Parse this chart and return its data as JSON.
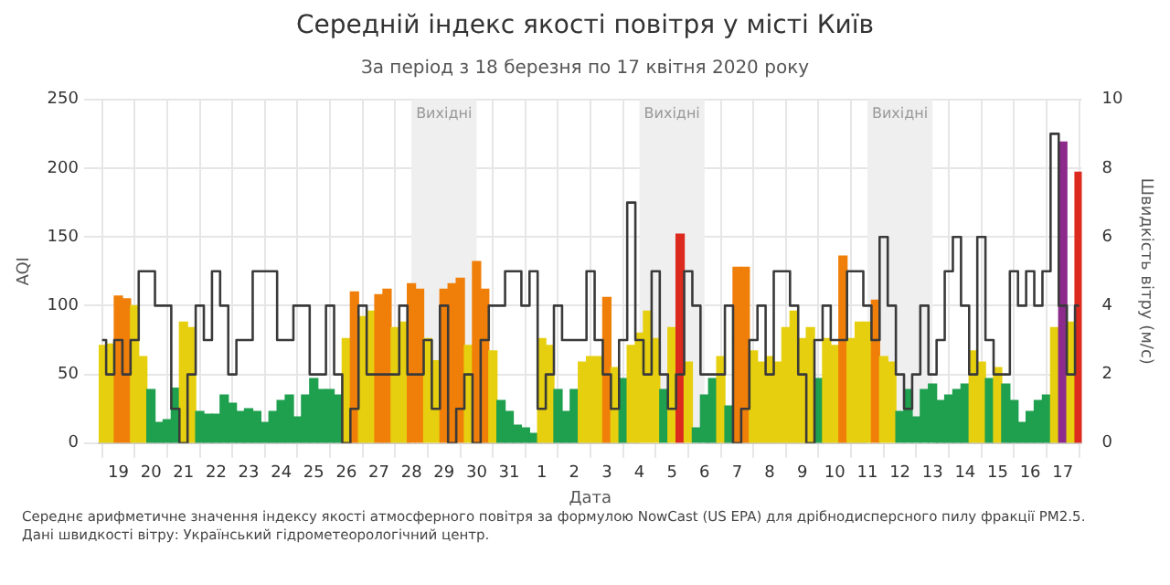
{
  "chart_data": {
    "type": "bar",
    "title": "Середній індекс якості повітря у місті Київ",
    "subtitle": "За період з 18 березня по 17 квітня 2020 року",
    "xlabel": "Дата",
    "ylabel": "AQI",
    "y2label": "Швидкість вітру (м/с)",
    "x": [
      "2020-03-18T12:00",
      "2020-03-18T18:00",
      "2020-03-19T00:00",
      "2020-03-19T06:00",
      "2020-03-19T12:00",
      "2020-03-19T18:00",
      "2020-03-20T00:00",
      "2020-03-20T06:00",
      "2020-03-20T12:00",
      "2020-03-20T18:00",
      "2020-03-21T00:00",
      "2020-03-21T06:00",
      "2020-03-21T12:00",
      "2020-03-21T18:00",
      "2020-03-22T00:00",
      "2020-03-22T06:00",
      "2020-03-22T12:00",
      "2020-03-22T18:00",
      "2020-03-23T00:00",
      "2020-03-23T06:00",
      "2020-03-23T12:00",
      "2020-03-23T18:00",
      "2020-03-24T00:00",
      "2020-03-24T06:00",
      "2020-03-24T12:00",
      "2020-03-24T18:00",
      "2020-03-25T00:00",
      "2020-03-25T06:00",
      "2020-03-25T12:00",
      "2020-03-25T18:00",
      "2020-03-26T00:00",
      "2020-03-26T06:00",
      "2020-03-26T12:00",
      "2020-03-26T18:00",
      "2020-03-27T00:00",
      "2020-03-27T06:00",
      "2020-03-27T12:00",
      "2020-03-27T18:00",
      "2020-03-28T00:00",
      "2020-03-28T06:00",
      "2020-03-28T12:00",
      "2020-03-28T18:00",
      "2020-03-29T00:00",
      "2020-03-29T06:00",
      "2020-03-29T12:00",
      "2020-03-29T18:00",
      "2020-03-30T00:00",
      "2020-03-30T06:00",
      "2020-03-30T12:00",
      "2020-03-30T18:00",
      "2020-03-31T00:00",
      "2020-03-31T06:00",
      "2020-03-31T12:00",
      "2020-03-31T18:00",
      "2020-04-01T00:00",
      "2020-04-01T06:00",
      "2020-04-01T12:00",
      "2020-04-01T18:00",
      "2020-04-02T00:00",
      "2020-04-02T06:00",
      "2020-04-02T12:00",
      "2020-04-02T18:00",
      "2020-04-03T00:00",
      "2020-04-03T06:00",
      "2020-04-03T12:00",
      "2020-04-03T18:00",
      "2020-04-04T00:00",
      "2020-04-04T06:00",
      "2020-04-04T12:00",
      "2020-04-04T18:00",
      "2020-04-05T00:00",
      "2020-04-05T06:00",
      "2020-04-05T12:00",
      "2020-04-05T18:00",
      "2020-04-06T00:00",
      "2020-04-06T06:00",
      "2020-04-06T12:00",
      "2020-04-06T18:00",
      "2020-04-07T00:00",
      "2020-04-07T06:00",
      "2020-04-07T12:00",
      "2020-04-07T18:00",
      "2020-04-08T00:00",
      "2020-04-08T06:00",
      "2020-04-08T12:00",
      "2020-04-08T18:00",
      "2020-04-09T00:00",
      "2020-04-09T06:00",
      "2020-04-09T12:00",
      "2020-04-09T18:00",
      "2020-04-10T00:00",
      "2020-04-10T06:00",
      "2020-04-10T12:00",
      "2020-04-10T18:00",
      "2020-04-11T00:00",
      "2020-04-11T06:00",
      "2020-04-11T12:00",
      "2020-04-11T18:00",
      "2020-04-12T00:00",
      "2020-04-12T06:00",
      "2020-04-12T12:00",
      "2020-04-12T18:00",
      "2020-04-13T00:00",
      "2020-04-13T06:00",
      "2020-04-13T12:00",
      "2020-04-13T18:00",
      "2020-04-14T00:00",
      "2020-04-14T06:00",
      "2020-04-14T12:00",
      "2020-04-14T18:00",
      "2020-04-15T00:00",
      "2020-04-15T06:00",
      "2020-04-15T12:00",
      "2020-04-15T18:00",
      "2020-04-16T00:00",
      "2020-04-16T06:00",
      "2020-04-16T12:00",
      "2020-04-16T18:00",
      "2020-04-17T00:00",
      "2020-04-17T06:00",
      "2020-04-17T12:00"
    ],
    "series": [
      {
        "values": [
          71,
          72,
          107,
          105,
          100,
          63,
          39,
          15,
          17,
          40,
          88,
          84,
          23,
          21,
          21,
          35,
          29,
          23,
          25,
          23,
          15,
          23,
          31,
          35,
          19,
          35,
          47,
          39,
          39,
          35,
          76,
          110,
          92,
          96,
          108,
          112,
          84,
          88,
          116,
          112,
          76,
          60,
          112,
          116,
          120,
          71,
          132,
          112,
          67,
          31,
          23,
          13,
          11,
          7,
          76,
          71,
          39,
          23,
          39,
          59,
          63,
          63,
          106,
          55,
          47,
          71,
          80,
          96,
          76,
          39,
          84,
          152,
          59,
          11,
          35,
          47,
          63,
          27,
          128,
          128,
          67,
          59,
          63,
          59,
          84,
          96,
          76,
          84,
          47,
          76,
          71,
          136,
          76,
          88,
          88,
          104,
          63,
          59,
          23,
          39,
          19,
          39,
          43,
          31,
          35,
          39,
          43,
          67,
          59,
          47,
          55,
          43,
          31,
          15,
          23,
          31,
          35,
          84,
          219,
          88,
          197
        ],
        "colors": [
          "#e6cf0e",
          "#e6cf0e",
          "#f07f0a",
          "#f07f0a",
          "#e6cf0e",
          "#e6cf0e",
          "#1ea04f",
          "#1ea04f",
          "#1ea04f",
          "#1ea04f",
          "#e6cf0e",
          "#e6cf0e",
          "#1ea04f",
          "#1ea04f",
          "#1ea04f",
          "#1ea04f",
          "#1ea04f",
          "#1ea04f",
          "#1ea04f",
          "#1ea04f",
          "#1ea04f",
          "#1ea04f",
          "#1ea04f",
          "#1ea04f",
          "#1ea04f",
          "#1ea04f",
          "#1ea04f",
          "#1ea04f",
          "#1ea04f",
          "#1ea04f",
          "#e6cf0e",
          "#f07f0a",
          "#e6cf0e",
          "#e6cf0e",
          "#f07f0a",
          "#f07f0a",
          "#e6cf0e",
          "#e6cf0e",
          "#f07f0a",
          "#f07f0a",
          "#e6cf0e",
          "#e6cf0e",
          "#f07f0a",
          "#f07f0a",
          "#f07f0a",
          "#e6cf0e",
          "#f07f0a",
          "#f07f0a",
          "#e6cf0e",
          "#1ea04f",
          "#1ea04f",
          "#1ea04f",
          "#1ea04f",
          "#1ea04f",
          "#e6cf0e",
          "#e6cf0e",
          "#1ea04f",
          "#1ea04f",
          "#1ea04f",
          "#e6cf0e",
          "#e6cf0e",
          "#e6cf0e",
          "#f07f0a",
          "#e6cf0e",
          "#1ea04f",
          "#e6cf0e",
          "#e6cf0e",
          "#e6cf0e",
          "#e6cf0e",
          "#1ea04f",
          "#e6cf0e",
          "#dc2a1e",
          "#e6cf0e",
          "#1ea04f",
          "#1ea04f",
          "#1ea04f",
          "#e6cf0e",
          "#1ea04f",
          "#f07f0a",
          "#f07f0a",
          "#e6cf0e",
          "#e6cf0e",
          "#e6cf0e",
          "#e6cf0e",
          "#e6cf0e",
          "#e6cf0e",
          "#e6cf0e",
          "#e6cf0e",
          "#1ea04f",
          "#e6cf0e",
          "#e6cf0e",
          "#f07f0a",
          "#e6cf0e",
          "#e6cf0e",
          "#e6cf0e",
          "#f07f0a",
          "#e6cf0e",
          "#e6cf0e",
          "#1ea04f",
          "#1ea04f",
          "#1ea04f",
          "#1ea04f",
          "#1ea04f",
          "#1ea04f",
          "#1ea04f",
          "#1ea04f",
          "#1ea04f",
          "#e6cf0e",
          "#e6cf0e",
          "#1ea04f",
          "#e6cf0e",
          "#1ea04f",
          "#1ea04f",
          "#1ea04f",
          "#1ea04f",
          "#1ea04f",
          "#1ea04f",
          "#e6cf0e",
          "#8c2b8c",
          "#e6cf0e",
          "#dc2a1e"
        ]
      },
      {
        "type": "step",
        "axis": "y2",
        "color": "#3a3a3a",
        "values": [
          3,
          2,
          3,
          2,
          3,
          5,
          5,
          4,
          4,
          1,
          0,
          2,
          4,
          3,
          5,
          4,
          2,
          3,
          3,
          5,
          5,
          5,
          3,
          3,
          4,
          4,
          2,
          2,
          4,
          2,
          0,
          1,
          4,
          2,
          2,
          2,
          2,
          4,
          2,
          2,
          3,
          1,
          4,
          0,
          1,
          2,
          0,
          3,
          4,
          4,
          5,
          5,
          4,
          5,
          1,
          2,
          4,
          3,
          3,
          3,
          5,
          3,
          2,
          1,
          3,
          7,
          3,
          2,
          5,
          2,
          1,
          2,
          5,
          4,
          2,
          2,
          2,
          4,
          0,
          1,
          3,
          4,
          2,
          5,
          5,
          4,
          2,
          0,
          3,
          4,
          3,
          3,
          5,
          5,
          4,
          3,
          6,
          4,
          2,
          1,
          2,
          4,
          2,
          3,
          5,
          6,
          4,
          2,
          6,
          3,
          2,
          2,
          5,
          4,
          5,
          4,
          5,
          9,
          4,
          2,
          4
        ]
      }
    ],
    "xlim": [
      "2020-03-18T09:30",
      "2020-04-17T14:00"
    ],
    "xticks": [
      {
        "value": "2020-03-19",
        "label": "19"
      },
      {
        "value": "2020-03-20",
        "label": "20"
      },
      {
        "value": "2020-03-21",
        "label": "21"
      },
      {
        "value": "2020-03-22",
        "label": "22"
      },
      {
        "value": "2020-03-23",
        "label": "23"
      },
      {
        "value": "2020-03-24",
        "label": "24"
      },
      {
        "value": "2020-03-25",
        "label": "25"
      },
      {
        "value": "2020-03-26",
        "label": "26"
      },
      {
        "value": "2020-03-27",
        "label": "27"
      },
      {
        "value": "2020-03-28",
        "label": "28"
      },
      {
        "value": "2020-03-29",
        "label": "29"
      },
      {
        "value": "2020-03-30",
        "label": "30"
      },
      {
        "value": "2020-03-31",
        "label": "31"
      },
      {
        "value": "2020-04-01",
        "label": "1"
      },
      {
        "value": "2020-04-02",
        "label": "2"
      },
      {
        "value": "2020-04-03",
        "label": "3"
      },
      {
        "value": "2020-04-04",
        "label": "4"
      },
      {
        "value": "2020-04-05",
        "label": "5"
      },
      {
        "value": "2020-04-06",
        "label": "6"
      },
      {
        "value": "2020-04-07",
        "label": "7"
      },
      {
        "value": "2020-04-08",
        "label": "8"
      },
      {
        "value": "2020-04-09",
        "label": "9"
      },
      {
        "value": "2020-04-10",
        "label": "10"
      },
      {
        "value": "2020-04-11",
        "label": "11"
      },
      {
        "value": "2020-04-12",
        "label": "12"
      },
      {
        "value": "2020-04-13",
        "label": "13"
      },
      {
        "value": "2020-04-14",
        "label": "14"
      },
      {
        "value": "2020-04-15",
        "label": "15"
      },
      {
        "value": "2020-04-16",
        "label": "16"
      },
      {
        "value": "2020-04-17",
        "label": "17"
      }
    ],
    "ylim": [
      0,
      250
    ],
    "yticks": [
      0,
      50,
      100,
      150,
      200,
      250
    ],
    "y2lim": [
      0,
      10
    ],
    "y2ticks": [
      0,
      2,
      4,
      6,
      8,
      10
    ],
    "bands": [
      {
        "axis": "x",
        "from": "2020-03-28",
        "to": "2020-03-30",
        "label": "Вихідні",
        "color": "#efefef"
      },
      {
        "axis": "x",
        "from": "2020-04-04",
        "to": "2020-04-06",
        "label": "Вихідні",
        "color": "#efefef"
      },
      {
        "axis": "x",
        "from": "2020-04-11",
        "to": "2020-04-13",
        "label": "Вихідні",
        "color": "#efefef"
      }
    ],
    "grid": true,
    "annotations": [
      "Середнє арифметичне значення індексу якості атмосферного повітря за формулою NowCast (US EPA) для дрібнодисперсного пилу фракції PM2.5.",
      "Дані швидкості вітру: Український гідрометеорологічний центр."
    ]
  }
}
